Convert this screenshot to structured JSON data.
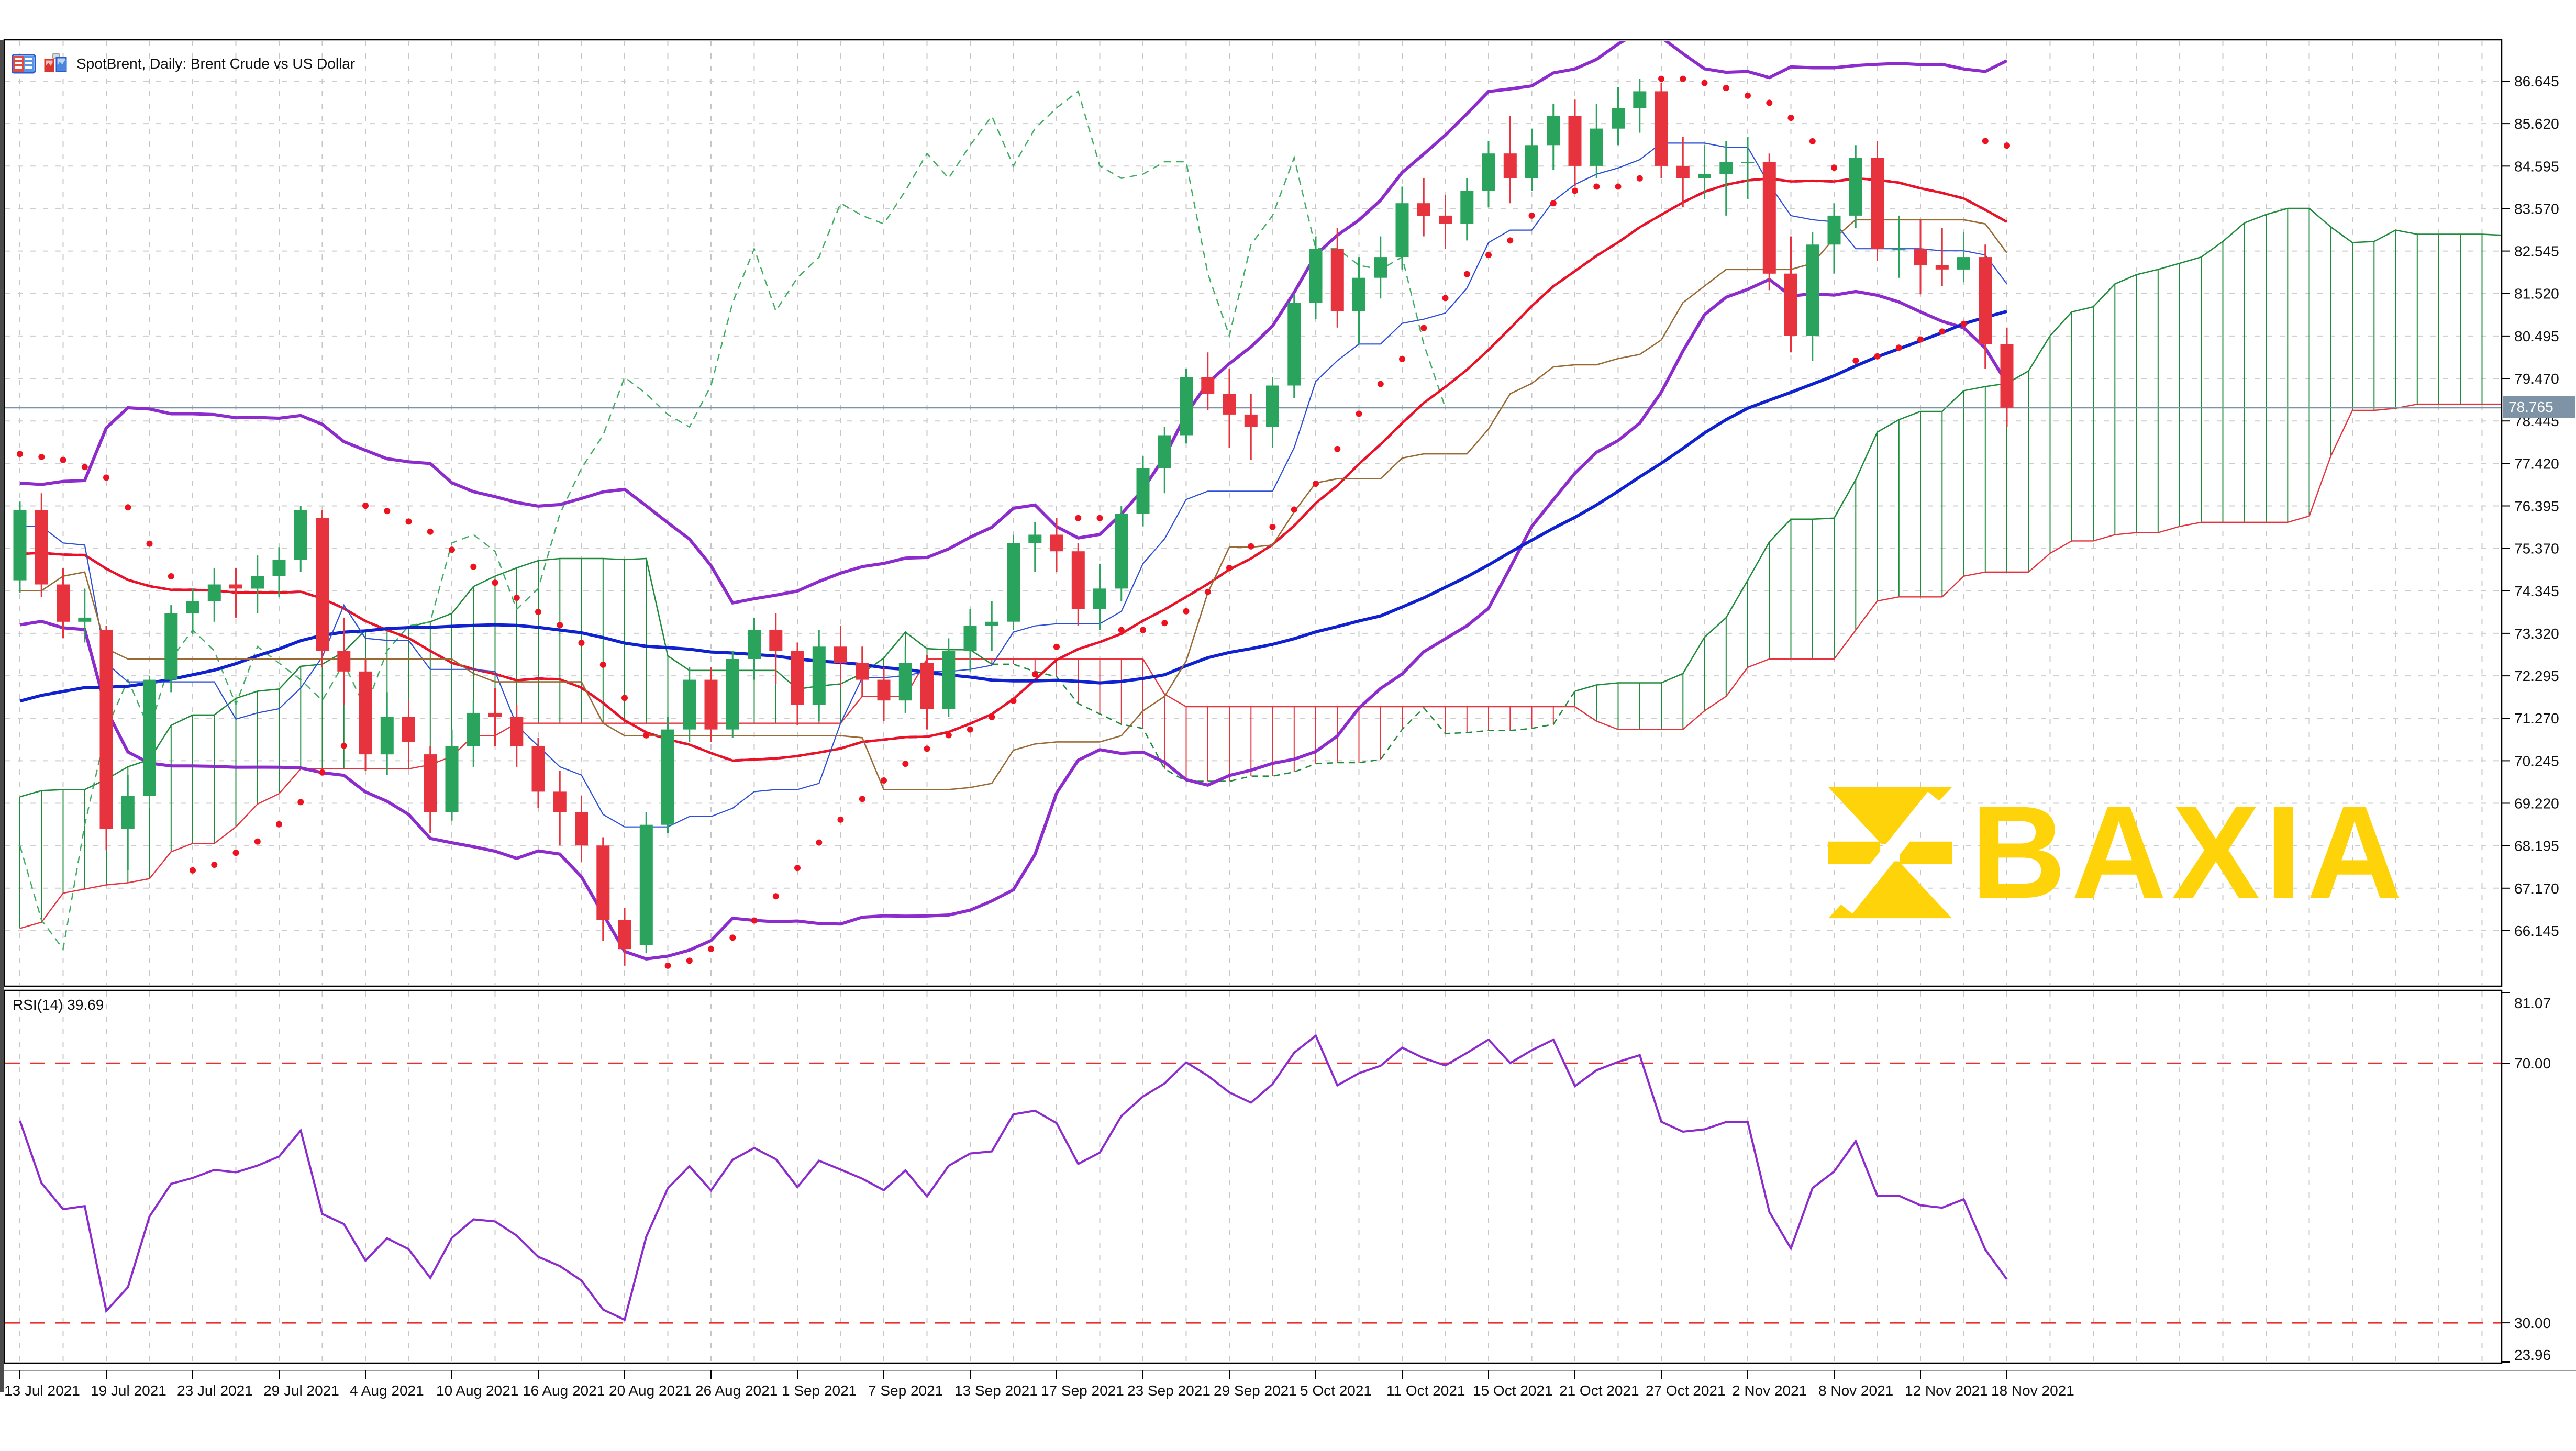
{
  "window": {
    "title": "SpotBrent, Daily: Brent Crude vs US Dollar"
  },
  "watermark": {
    "text": "BAXIA",
    "color": "#ffd30a"
  },
  "chart_data": {
    "type": "candlestick",
    "symbol": "SpotBrent",
    "timeframe": "Daily",
    "current_price": 78.765,
    "current_price_label": "78.765",
    "price_axis": {
      "tick_labels": [
        "86.645",
        "85.620",
        "84.595",
        "83.570",
        "82.545",
        "81.520",
        "80.495",
        "79.470",
        "78.445",
        "77.420",
        "76.395",
        "75.370",
        "74.345",
        "73.320",
        "72.295",
        "71.270",
        "70.245",
        "69.220",
        "68.195",
        "67.170",
        "66.145"
      ],
      "tick_step": 1.025
    },
    "x_tick_labels": [
      "13 Jul 2021",
      "19 Jul 2021",
      "23 Jul 2021",
      "29 Jul 2021",
      "4 Aug 2021",
      "10 Aug 2021",
      "16 Aug 2021",
      "20 Aug 2021",
      "26 Aug 2021",
      "1 Sep 2021",
      "7 Sep 2021",
      "13 Sep 2021",
      "17 Sep 2021",
      "23 Sep 2021",
      "29 Sep 2021",
      "5 Oct 2021",
      "11 Oct 2021",
      "15 Oct 2021",
      "21 Oct 2021",
      "27 Oct 2021",
      "2 Nov 2021",
      "8 Nov 2021",
      "12 Nov 2021",
      "18 Nov 2021"
    ],
    "label_every": 4,
    "ohlc": [
      [
        74.6,
        76.5,
        74.3,
        76.3
      ],
      [
        76.3,
        76.7,
        74.2,
        74.5
      ],
      [
        74.5,
        74.9,
        73.2,
        73.6
      ],
      [
        73.6,
        74.4,
        73.1,
        73.7
      ],
      [
        73.4,
        73.5,
        68.1,
        68.6
      ],
      [
        68.6,
        69.9,
        67.6,
        69.4
      ],
      [
        69.4,
        72.3,
        69.1,
        72.2
      ],
      [
        72.2,
        74.0,
        71.9,
        73.8
      ],
      [
        73.8,
        74.4,
        73.3,
        74.1
      ],
      [
        74.1,
        74.9,
        73.6,
        74.5
      ],
      [
        74.5,
        74.9,
        73.7,
        74.4
      ],
      [
        74.4,
        75.2,
        73.8,
        74.7
      ],
      [
        74.7,
        75.4,
        74.2,
        75.1
      ],
      [
        75.1,
        76.4,
        74.8,
        76.3
      ],
      [
        76.1,
        76.3,
        72.5,
        72.9
      ],
      [
        72.9,
        73.7,
        71.6,
        72.4
      ],
      [
        72.4,
        72.7,
        70.0,
        70.4
      ],
      [
        70.4,
        71.9,
        69.9,
        71.3
      ],
      [
        71.3,
        71.7,
        70.1,
        70.7
      ],
      [
        70.4,
        70.6,
        68.5,
        69.0
      ],
      [
        69.0,
        71.0,
        68.8,
        70.6
      ],
      [
        70.6,
        71.7,
        70.1,
        71.4
      ],
      [
        71.4,
        72.0,
        70.6,
        71.3
      ],
      [
        71.3,
        71.6,
        70.1,
        70.6
      ],
      [
        70.6,
        70.8,
        69.1,
        69.5
      ],
      [
        69.5,
        70.0,
        68.2,
        69.0
      ],
      [
        69.0,
        69.4,
        67.8,
        68.2
      ],
      [
        68.2,
        68.4,
        65.9,
        66.4
      ],
      [
        66.4,
        66.7,
        65.3,
        65.7
      ],
      [
        65.8,
        69.0,
        65.6,
        68.7
      ],
      [
        68.7,
        71.3,
        68.5,
        71.0
      ],
      [
        71.0,
        72.5,
        70.7,
        72.2
      ],
      [
        72.2,
        72.5,
        70.7,
        71.0
      ],
      [
        71.0,
        72.9,
        70.8,
        72.7
      ],
      [
        72.7,
        73.7,
        72.2,
        73.4
      ],
      [
        73.4,
        73.8,
        72.1,
        72.9
      ],
      [
        72.9,
        73.1,
        71.1,
        71.6
      ],
      [
        71.6,
        73.4,
        71.2,
        73.0
      ],
      [
        73.0,
        73.5,
        72.0,
        72.6
      ],
      [
        72.6,
        73.0,
        71.8,
        72.2
      ],
      [
        72.2,
        72.5,
        71.2,
        71.7
      ],
      [
        71.7,
        73.0,
        71.4,
        72.6
      ],
      [
        72.6,
        72.8,
        71.0,
        71.5
      ],
      [
        71.5,
        73.2,
        71.3,
        72.9
      ],
      [
        72.9,
        73.9,
        72.4,
        73.5
      ],
      [
        73.5,
        74.1,
        72.9,
        73.6
      ],
      [
        73.6,
        75.7,
        73.4,
        75.5
      ],
      [
        75.5,
        76.0,
        74.8,
        75.7
      ],
      [
        75.7,
        76.1,
        74.8,
        75.3
      ],
      [
        75.3,
        75.5,
        73.5,
        73.9
      ],
      [
        73.9,
        75.0,
        73.4,
        74.4
      ],
      [
        74.4,
        76.4,
        74.1,
        76.2
      ],
      [
        76.2,
        77.6,
        75.9,
        77.3
      ],
      [
        77.3,
        78.3,
        76.7,
        78.1
      ],
      [
        78.1,
        79.7,
        77.9,
        79.5
      ],
      [
        79.5,
        80.1,
        78.7,
        79.1
      ],
      [
        79.1,
        79.7,
        77.8,
        78.6
      ],
      [
        78.6,
        79.1,
        77.5,
        78.3
      ],
      [
        78.3,
        79.5,
        77.8,
        79.3
      ],
      [
        79.3,
        81.5,
        79.0,
        81.3
      ],
      [
        81.3,
        82.9,
        80.9,
        82.6
      ],
      [
        82.6,
        83.1,
        80.7,
        81.1
      ],
      [
        81.1,
        82.4,
        80.3,
        81.9
      ],
      [
        81.9,
        82.9,
        81.4,
        82.4
      ],
      [
        82.4,
        84.1,
        82.1,
        83.7
      ],
      [
        83.7,
        84.3,
        82.9,
        83.4
      ],
      [
        83.4,
        83.9,
        82.6,
        83.2
      ],
      [
        83.2,
        84.3,
        82.8,
        84.0
      ],
      [
        84.0,
        85.2,
        83.6,
        84.9
      ],
      [
        84.9,
        85.8,
        83.7,
        84.3
      ],
      [
        84.3,
        85.5,
        84.0,
        85.1
      ],
      [
        85.1,
        86.1,
        84.5,
        85.8
      ],
      [
        85.8,
        86.2,
        84.1,
        84.6
      ],
      [
        84.6,
        86.1,
        84.3,
        85.5
      ],
      [
        85.5,
        86.5,
        85.1,
        86.0
      ],
      [
        86.0,
        86.7,
        85.4,
        86.4
      ],
      [
        86.4,
        86.6,
        84.3,
        84.6
      ],
      [
        84.6,
        85.3,
        83.6,
        84.3
      ],
      [
        84.3,
        85.1,
        83.8,
        84.4
      ],
      [
        84.4,
        85.2,
        83.4,
        84.7
      ],
      [
        84.7,
        85.3,
        83.8,
        84.7
      ],
      [
        84.7,
        84.9,
        81.6,
        82.0
      ],
      [
        82.0,
        82.9,
        80.1,
        80.5
      ],
      [
        80.5,
        83.0,
        79.9,
        82.7
      ],
      [
        82.7,
        83.7,
        82.0,
        83.4
      ],
      [
        83.4,
        85.1,
        83.1,
        84.8
      ],
      [
        84.8,
        85.2,
        82.3,
        82.6
      ],
      [
        82.6,
        83.4,
        81.9,
        82.6
      ],
      [
        82.6,
        83.3,
        81.5,
        82.2
      ],
      [
        82.2,
        83.1,
        81.7,
        82.1
      ],
      [
        82.1,
        83.0,
        81.8,
        82.4
      ],
      [
        82.4,
        82.7,
        79.7,
        80.3
      ],
      [
        80.3,
        80.7,
        78.3,
        78.765
      ]
    ],
    "warmup_closes": [
      61.9,
      60.5,
      61.9,
      62.3,
      64.6,
      64.0,
      64.1,
      62.7,
      63.5,
      63.0,
      62.1,
      63.2,
      63.7,
      66.6,
      66.9,
      67.0,
      66.8,
      66.1,
      65.4,
      65.6,
      66.1,
      65.1,
      64.5,
      65.3,
      66.4,
      67.3,
      68.6,
      67.3,
      67.6,
      68.9,
      69.0,
      68.1,
      68.3,
      68.3,
      69.3,
      68.7,
      68.9,
      66.6,
      65.1,
      66.9,
      66.4,
      66.4,
      68.5,
      68.9,
      68.6,
      69.5,
      68.7,
      69.3,
      70.3,
      70.6,
      71.3,
      71.9,
      72.2,
      71.5,
      72.2,
      72.4,
      72.5,
      72.7,
      74.0,
      74.4,
      73.9,
      75.2,
      74.8,
      75.2,
      75.6,
      74.1,
      74.8,
      75.4,
      74.6,
      75.3,
      75.8,
      76.2,
      77.2,
      76.5,
      75.6,
      74.6,
      75.2
    ],
    "indicators": {
      "bollinger": {
        "period": 20,
        "deviation": 2,
        "color": "#8d2ccc"
      },
      "sma_fast": {
        "period": 20,
        "color": "#ee1220"
      },
      "sma_slow": {
        "period": 50,
        "color": "#1022d0"
      },
      "ichimoku": {
        "tenkan": 9,
        "kijun": 26,
        "senkou_b": 52,
        "shift": 26,
        "tenkan_color": "#2b4fd8",
        "kijun_color": "#996a33",
        "chikou_color": "#3fae63",
        "span_a_color": "#1f8c3c",
        "span_b_color": "#e6333e"
      },
      "psar": {
        "step": 0.02,
        "maximum": 0.2,
        "color": "#ee1220"
      },
      "rsi": {
        "period": 14,
        "value": 39.69,
        "color": "#8d2ccc",
        "level_color": "#e8302f"
      }
    },
    "rsi_label": "RSI(14) 39.69",
    "rsi_ticks": [
      "81.07",
      "70.00",
      "30.00",
      "23.96"
    ],
    "rsi_tick_values": [
      81.07,
      70.0,
      30.0,
      23.96
    ],
    "rsi_levels": [
      70,
      30
    ],
    "rsi_range": [
      23.96,
      81.07
    ],
    "candle_up_color": "#2aa45c",
    "candle_down_color": "#e6333e",
    "grid_color": "#c6c6c6",
    "price_line_color": "#7e93a6",
    "badge_color": "#7e93a6"
  }
}
